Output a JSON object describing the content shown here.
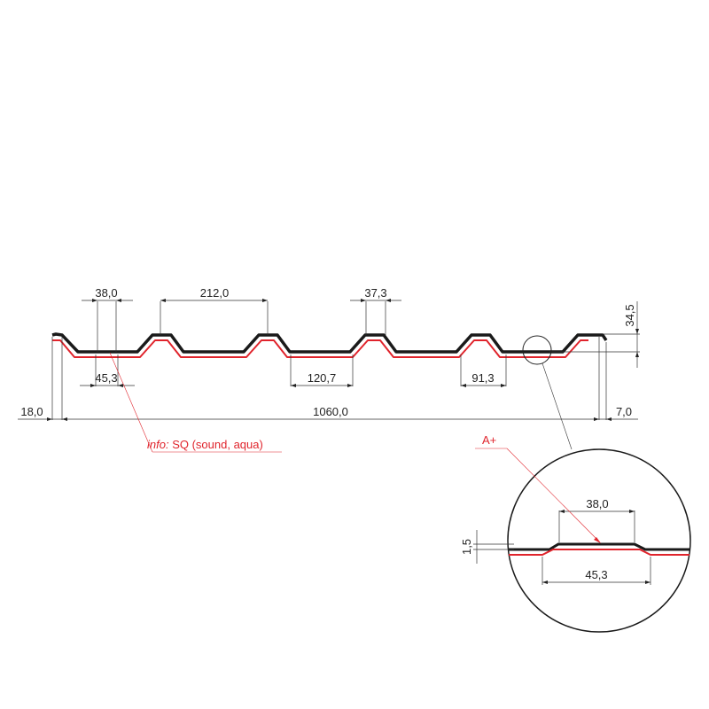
{
  "dimensions": {
    "rib_top_left": "38,0",
    "pitch": "212,0",
    "rib_top_mid": "37,3",
    "height": "34,5",
    "valley_flat": "45,3",
    "valley_width": "120,7",
    "valley_right": "91,3",
    "left_overhang": "18,0",
    "cover_width": "1060,0",
    "right_overhang": "7,0"
  },
  "annotations": {
    "info_prefix": "info:",
    "info_text": "SQ (sound, aqua)",
    "detail_label": "A+"
  },
  "detail": {
    "top_width": "38,0",
    "bottom_width": "45,3",
    "thickness": "1,5"
  },
  "colors": {
    "profile": "#1a1a1a",
    "coating": "#e0242c",
    "dimension": "#333333"
  }
}
